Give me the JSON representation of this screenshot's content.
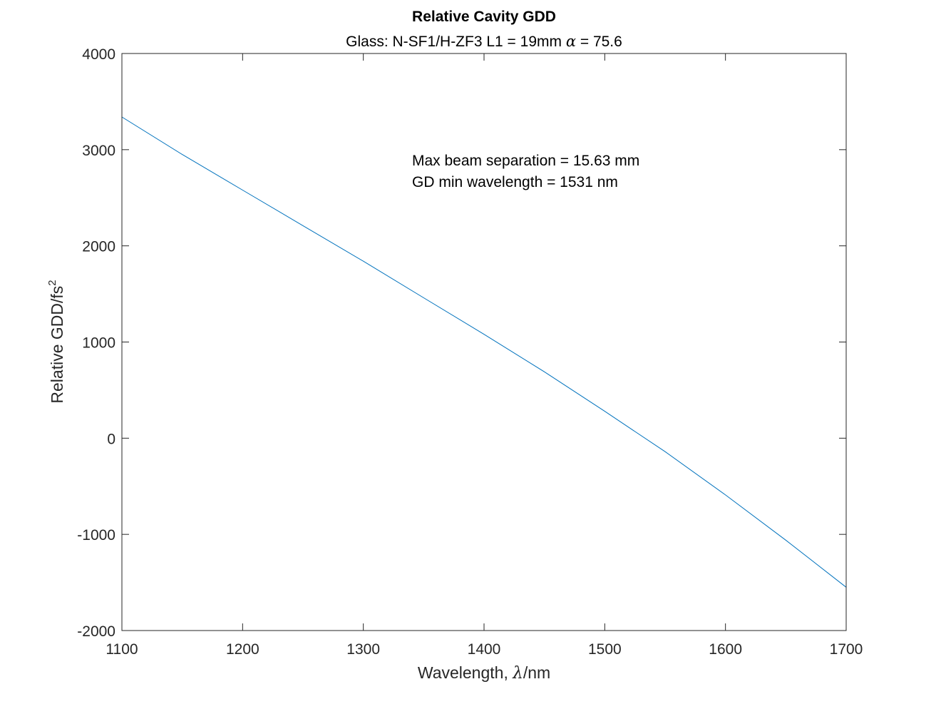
{
  "chart_data": {
    "type": "line",
    "title": "Relative Cavity GDD",
    "subtitle": {
      "prefix": "Glass: N-SF1/H-ZF3  L1 = 19mm  ",
      "symbol": "α",
      "suffix": " = 75.6"
    },
    "xlabel": {
      "prefix": "Wavelength, ",
      "symbol": "λ",
      "suffix": "/nm"
    },
    "ylabel": {
      "base": "Relative GDD/fs",
      "superscript": "2"
    },
    "xlim": [
      1100,
      1700
    ],
    "ylim": [
      -2000,
      4000
    ],
    "xticks": [
      "1100",
      "1200",
      "1300",
      "1400",
      "1500",
      "1600",
      "1700"
    ],
    "yticks": [
      "-2000",
      "-1000",
      "0",
      "1000",
      "2000",
      "3000",
      "4000"
    ],
    "grid": false,
    "annotations": [
      "Max beam separation = 15.63 mm",
      "GD min wavelength = 1531 nm"
    ],
    "series": [
      {
        "color": "#0072bd",
        "x": [
          1100,
          1150,
          1200,
          1250,
          1300,
          1350,
          1400,
          1450,
          1500,
          1550,
          1600,
          1650,
          1700
        ],
        "y": [
          3340,
          2950,
          2580,
          2210,
          1840,
          1460,
          1080,
          690,
          280,
          -140,
          -590,
          -1060,
          -1550
        ]
      }
    ]
  }
}
